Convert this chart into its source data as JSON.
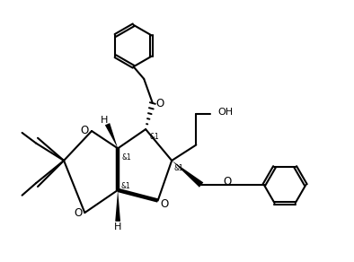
{
  "background": "#ffffff",
  "col": "#000000",
  "lw": 1.5,
  "blw": 3.2,
  "fig_w": 3.94,
  "fig_h": 2.92,
  "dpi": 100,
  "xlim": [
    -0.5,
    8.5
  ],
  "ylim": [
    0.3,
    7.8
  ]
}
